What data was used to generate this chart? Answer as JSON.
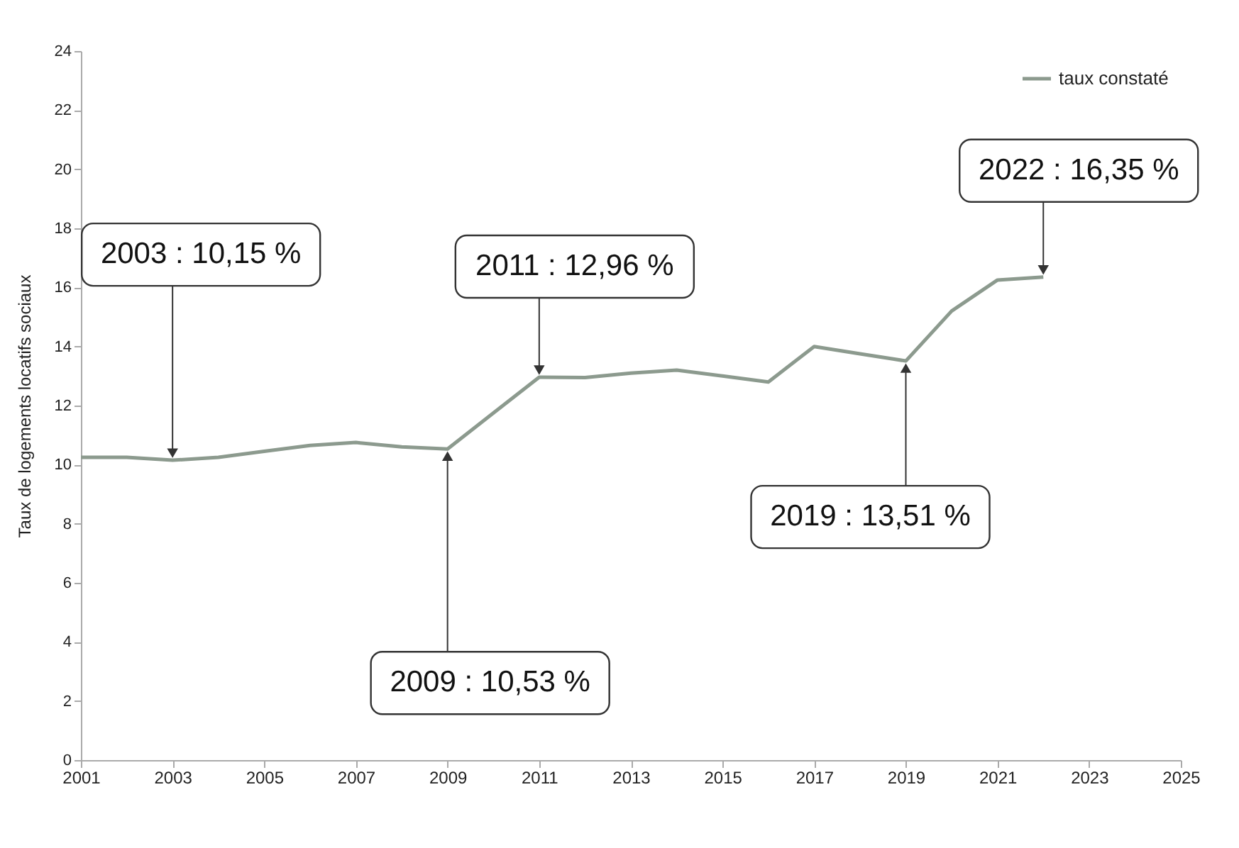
{
  "chart_data": {
    "type": "line",
    "ylabel": "Taux de logements locatifs sociaux",
    "x": [
      2001,
      2002,
      2003,
      2004,
      2005,
      2006,
      2007,
      2008,
      2009,
      2010,
      2011,
      2012,
      2013,
      2014,
      2015,
      2016,
      2017,
      2018,
      2019,
      2020,
      2021,
      2022
    ],
    "series": [
      {
        "name": "taux constaté",
        "color": "#8c9a8e",
        "values": [
          10.25,
          10.25,
          10.15,
          10.25,
          10.45,
          10.65,
          10.75,
          10.6,
          10.53,
          11.75,
          12.96,
          12.95,
          13.1,
          13.2,
          13.0,
          12.8,
          14.0,
          13.75,
          13.51,
          15.2,
          16.25,
          16.35
        ]
      }
    ],
    "xlim": [
      2001,
      2025
    ],
    "xticks": [
      2001,
      2003,
      2005,
      2007,
      2009,
      2011,
      2013,
      2015,
      2017,
      2019,
      2021,
      2023,
      2025
    ],
    "ylim": [
      0,
      24
    ],
    "yticks": [
      0,
      2,
      4,
      6,
      8,
      10,
      12,
      14,
      16,
      18,
      20,
      22,
      24
    ],
    "grid": false,
    "legend": "top right",
    "marker": "none",
    "line_style": "solid",
    "annotations": [
      {
        "text": "2003 : 10,15 %",
        "x": 2003,
        "y": 10.15
      },
      {
        "text": "2009 : 10,53 %",
        "x": 2009,
        "y": 10.53
      },
      {
        "text": "2011 : 12,96 %",
        "x": 2011,
        "y": 12.96
      },
      {
        "text": "2019 : 13,51 %",
        "x": 2019,
        "y": 13.51
      },
      {
        "text": "2022 : 16,35 %",
        "x": 2022,
        "y": 16.35
      }
    ]
  }
}
